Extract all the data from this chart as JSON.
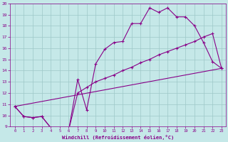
{
  "xlabel": "Windchill (Refroidissement éolien,°C)",
  "xlim": [
    0,
    23
  ],
  "ylim": [
    9,
    20
  ],
  "xticks": [
    0,
    1,
    2,
    3,
    4,
    5,
    6,
    7,
    8,
    9,
    10,
    11,
    12,
    13,
    14,
    15,
    16,
    17,
    18,
    19,
    20,
    21,
    22,
    23
  ],
  "yticks": [
    9,
    10,
    11,
    12,
    13,
    14,
    15,
    16,
    17,
    18,
    19,
    20
  ],
  "bg_color": "#c5e8e8",
  "line_color": "#880088",
  "grid_color": "#9dc8c8",
  "line1_x": [
    0,
    1,
    2,
    3,
    4,
    5,
    6,
    7,
    8,
    9,
    10,
    11,
    12,
    13,
    14,
    15,
    16,
    17,
    18,
    19,
    20,
    21,
    22,
    23
  ],
  "line1_y": [
    10.8,
    9.9,
    9.8,
    9.9,
    8.9,
    8.7,
    8.7,
    13.2,
    10.5,
    14.6,
    15.9,
    16.5,
    16.6,
    18.2,
    18.2,
    19.6,
    19.2,
    19.6,
    18.8,
    18.8,
    18.0,
    16.5,
    14.8,
    14.2
  ],
  "line2_x": [
    0,
    1,
    2,
    3,
    4,
    5,
    6,
    7,
    8,
    9,
    10,
    11,
    12,
    13,
    14,
    15,
    16,
    17,
    18,
    19,
    20,
    21,
    22,
    23
  ],
  "line2_y": [
    10.8,
    9.9,
    9.8,
    9.9,
    8.9,
    8.7,
    8.7,
    12.0,
    12.5,
    13.0,
    13.3,
    13.6,
    14.0,
    14.3,
    14.7,
    15.0,
    15.4,
    15.7,
    16.0,
    16.3,
    16.6,
    17.0,
    17.3,
    14.2
  ],
  "line3_x": [
    0,
    23
  ],
  "line3_y": [
    10.8,
    14.2
  ]
}
